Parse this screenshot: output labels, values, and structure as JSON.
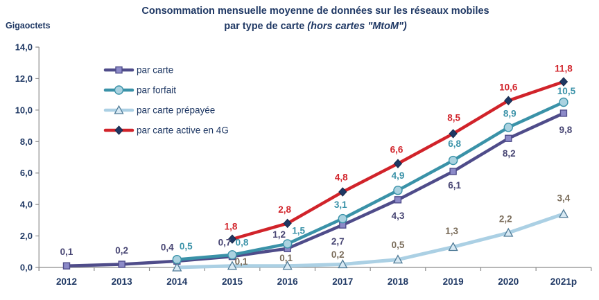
{
  "title": {
    "line1": "Consommation mensuelle moyenne de données sur les réseaux mobiles",
    "line2_regular": "par type de carte ",
    "line2_italic": "(hors cartes \"MtoM\")"
  },
  "y_axis_unit": "Gigaoctets",
  "colors": {
    "title_text": "#1f3864",
    "axis_text": "#1f3864",
    "axis_line": "#8c8c8c"
  },
  "chart_data": {
    "type": "line",
    "title": "Consommation mensuelle moyenne de données sur les réseaux mobiles par type de carte (hors cartes \"MtoM\")",
    "ylabel": "Gigaoctets",
    "categories": [
      "2012",
      "2013",
      "2014",
      "2015",
      "2016",
      "2017",
      "2018",
      "2019",
      "2020",
      "2021p"
    ],
    "ylim": [
      0,
      14
    ],
    "y_tick_step": 2,
    "y_tick_labels": [
      "0,0",
      "2,0",
      "4,0",
      "6,0",
      "8,0",
      "10,0",
      "12,0",
      "14,0"
    ],
    "grid": false,
    "legend_position": "top-left-inside",
    "series": [
      {
        "name": "par carte",
        "marker": "square",
        "line_color": "#4f4c8a",
        "marker_fill": "#8c8ac8",
        "marker_stroke": "#4f4c8a",
        "label_color": "#474573",
        "values": [
          0.1,
          0.2,
          0.4,
          0.7,
          1.2,
          2.7,
          4.3,
          6.1,
          8.2,
          9.8
        ],
        "labels": [
          "0,1",
          "0,2",
          "0,4",
          "0,7",
          "1,2",
          "2,7",
          "4,3",
          "6,1",
          "8,2",
          "9,8"
        ]
      },
      {
        "name": "par forfait",
        "marker": "circle",
        "line_color": "#3a92a8",
        "marker_fill": "#aad2e0",
        "marker_stroke": "#3a92a8",
        "label_color": "#3a92a8",
        "values": [
          null,
          null,
          0.5,
          0.8,
          1.5,
          3.1,
          4.9,
          6.8,
          8.9,
          10.5
        ],
        "labels": [
          null,
          null,
          "0,5",
          "0,8",
          "1,5",
          "3,1",
          "4,9",
          "6,8",
          "8,9",
          "10,5"
        ]
      },
      {
        "name": "par carte prépayée",
        "marker": "triangle",
        "line_color": "#abd0e4",
        "marker_fill": "#d8e9f3",
        "marker_stroke": "#4e7a96",
        "label_color": "#7b6d5b",
        "values": [
          null,
          null,
          0.0,
          0.1,
          0.1,
          0.2,
          0.5,
          1.3,
          2.2,
          3.4
        ],
        "labels": [
          null,
          null,
          null,
          "0,1",
          "0,1",
          "0,2",
          "0,5",
          "1,3",
          "2,2",
          "3,4"
        ]
      },
      {
        "name": "par carte active en 4G",
        "marker": "diamond",
        "line_color": "#d1232a",
        "marker_fill": "#1f3864",
        "marker_stroke": "#16294a",
        "label_color": "#d1232a",
        "values": [
          null,
          null,
          null,
          1.8,
          2.8,
          4.8,
          6.6,
          8.5,
          10.6,
          11.8
        ],
        "labels": [
          null,
          null,
          null,
          "1,8",
          "2,8",
          "4,8",
          "6,6",
          "8,5",
          "10,6",
          "11,8"
        ]
      }
    ]
  }
}
